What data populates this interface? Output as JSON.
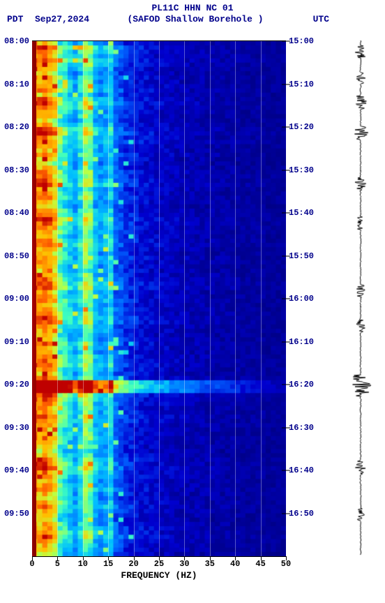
{
  "header": {
    "title_line1": "PL11C HHN NC 01",
    "tz_left": "PDT",
    "date": "Sep27,2024",
    "station": "(SAFOD Shallow Borehole )",
    "tz_right": "UTC"
  },
  "axes": {
    "xlabel": "FREQUENCY (HZ)",
    "xticks": [
      0,
      5,
      10,
      15,
      20,
      25,
      30,
      35,
      40,
      45,
      50
    ],
    "xlim": [
      0,
      50
    ],
    "left_ticks": [
      "08:00",
      "08:10",
      "08:20",
      "08:30",
      "08:40",
      "08:50",
      "09:00",
      "09:10",
      "09:20",
      "09:30",
      "09:40",
      "09:50"
    ],
    "right_ticks": [
      "15:00",
      "15:10",
      "15:20",
      "15:30",
      "15:40",
      "15:50",
      "16:00",
      "16:10",
      "16:20",
      "16:30",
      "16:40",
      "16:50"
    ],
    "n_time_rows": 120
  },
  "colormap": {
    "stops": [
      [
        0.0,
        "#00007f"
      ],
      [
        0.12,
        "#0000cf"
      ],
      [
        0.25,
        "#0060ff"
      ],
      [
        0.38,
        "#00c0ff"
      ],
      [
        0.5,
        "#40ffc0"
      ],
      [
        0.62,
        "#c0ff40"
      ],
      [
        0.75,
        "#ffc000"
      ],
      [
        0.88,
        "#ff6000"
      ],
      [
        1.0,
        "#bf0000"
      ]
    ]
  },
  "spectrogram": {
    "freq_bins": 50,
    "time_bins": 120,
    "base_profile": [
      0.95,
      0.92,
      0.85,
      0.78,
      0.7,
      0.62,
      0.55,
      0.48,
      0.42,
      0.52,
      0.56,
      0.5,
      0.44,
      0.38,
      0.42,
      0.36,
      0.3,
      0.26,
      0.22,
      0.2,
      0.18,
      0.16,
      0.15,
      0.14,
      0.13,
      0.12,
      0.12,
      0.11,
      0.11,
      0.1,
      0.1,
      0.09,
      0.09,
      0.09,
      0.08,
      0.08,
      0.08,
      0.07,
      0.07,
      0.07,
      0.07,
      0.06,
      0.06,
      0.06,
      0.06,
      0.06,
      0.05,
      0.05,
      0.05,
      0.05
    ],
    "row_intensity": [
      0.15,
      0.4,
      0.3,
      0.25,
      0.35,
      0.3,
      0.2,
      0.15,
      0.25,
      0.2,
      0.25,
      0.3,
      0.15,
      0.35,
      0.4,
      0.3,
      0.2,
      0.25,
      0.15,
      0.2,
      0.4,
      0.45,
      0.3,
      0.35,
      0.25,
      0.2,
      0.3,
      0.15,
      0.1,
      0.2,
      0.3,
      0.25,
      0.35,
      0.4,
      0.2,
      0.25,
      0.3,
      0.2,
      0.15,
      0.25,
      0.3,
      0.4,
      0.35,
      0.3,
      0.25,
      0.2,
      0.3,
      0.35,
      0.25,
      0.2,
      0.3,
      0.25,
      0.2,
      0.15,
      0.25,
      0.3,
      0.35,
      0.4,
      0.2,
      0.25,
      0.3,
      0.2,
      0.25,
      0.3,
      0.4,
      0.35,
      0.25,
      0.2,
      0.15,
      0.2,
      0.3,
      0.25,
      0.2,
      0.25,
      0.3,
      0.35,
      0.25,
      0.2,
      0.3,
      0.85,
      0.9,
      0.75,
      0.4,
      0.35,
      0.3,
      0.25,
      0.3,
      0.35,
      0.3,
      0.25,
      0.2,
      0.25,
      0.3,
      0.2,
      0.15,
      0.1,
      0.2,
      0.3,
      0.35,
      0.4,
      0.3,
      0.25,
      0.2,
      0.25,
      0.3,
      0.2,
      0.15,
      0.25,
      0.3,
      0.2,
      0.15,
      0.1,
      0.2,
      0.25,
      0.3,
      0.35,
      0.25,
      0.2,
      0.15,
      0.1
    ],
    "hot_columns": [
      2,
      3,
      4,
      10,
      11,
      15
    ],
    "burst_rows": [
      79,
      80,
      81
    ],
    "noise_amp": 0.15
  },
  "waveform": {
    "color": "#000000",
    "center_amp": 0.05,
    "bursts": [
      {
        "row": 2,
        "amp": 0.6
      },
      {
        "row": 8,
        "amp": 0.4
      },
      {
        "row": 14,
        "amp": 0.5
      },
      {
        "row": 21,
        "amp": 0.7
      },
      {
        "row": 33,
        "amp": 0.5
      },
      {
        "row": 42,
        "amp": 0.4
      },
      {
        "row": 58,
        "amp": 0.5
      },
      {
        "row": 66,
        "amp": 0.4
      },
      {
        "row": 79,
        "amp": 0.9
      },
      {
        "row": 80,
        "amp": 1.0
      },
      {
        "row": 81,
        "amp": 0.8
      },
      {
        "row": 99,
        "amp": 0.5
      },
      {
        "row": 110,
        "amp": 0.4
      }
    ]
  },
  "style": {
    "text_color": "#00008b",
    "tick_color": "#000000",
    "bg": "#ffffff",
    "spectro_bg": "#00007f",
    "red_edge": "#8b0000",
    "font_family": "Courier New, monospace",
    "header_fontsize": 13,
    "tick_fontsize": 12
  }
}
